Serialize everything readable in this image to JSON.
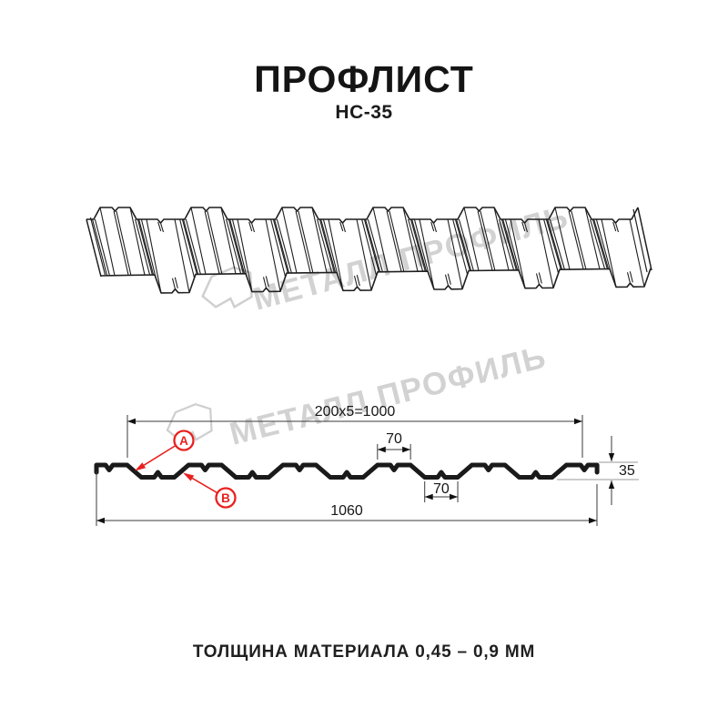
{
  "header": {
    "title": "ПРОФЛИСТ",
    "subtitle": "НС-35"
  },
  "watermark": {
    "brand": "МЕТАЛЛ ПРОФИЛЬ"
  },
  "diagram": {
    "dimensions": {
      "useful_width": "200x5=1000",
      "overall_width": "1060",
      "rib_top_width": "70",
      "rib_bottom_width": "70",
      "profile_height": "35"
    },
    "labels": {
      "point_a": "A",
      "point_b": "B"
    },
    "profile": {
      "overall_mm": 1060,
      "useful_mm": 1000,
      "pitch_mm": 200,
      "height_mm": 35,
      "top_flat_mm": 70,
      "bottom_flat_mm": 70
    },
    "colors": {
      "annotation_red": "#e8211f",
      "line_black": "#1a1a1a",
      "dim_line": "#3a3a3a",
      "level_gray": "#9a9a9a",
      "watermark_gray": "#d2d2d2"
    }
  },
  "footer": {
    "text": "ТОЛЩИНА МАТЕРИАЛА 0,45 – 0,9 ММ"
  }
}
